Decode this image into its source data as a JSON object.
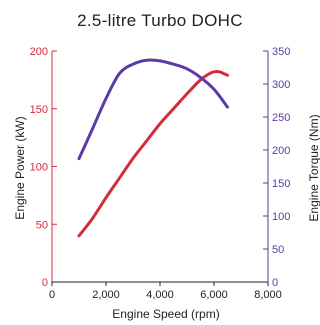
{
  "chart_data": {
    "type": "line",
    "title": "2.5-litre Turbo DOHC",
    "xlabel": "Engine Speed (rpm)",
    "ylabel_left": "Engine Power (kW)",
    "ylabel_right": "Engine Torque (Nm)",
    "xlim": [
      0,
      8000
    ],
    "ylim_left": [
      0,
      200
    ],
    "ylim_right": [
      0,
      350
    ],
    "x_ticks": [
      "0",
      "2,000",
      "4,000",
      "6,000",
      "8,000"
    ],
    "y_left_ticks": [
      "0",
      "50",
      "100",
      "150",
      "200"
    ],
    "y_right_ticks": [
      "0",
      "50",
      "100",
      "150",
      "200",
      "250",
      "300",
      "350"
    ],
    "grid": false,
    "colors": {
      "power": "#d42a3a",
      "torque": "#5b3aa6",
      "axis_left": "#d42a3a",
      "axis_right": "#5b3aa6",
      "axis_x": "#222222"
    },
    "series": [
      {
        "axis": "left",
        "color": "#d42a3a",
        "x": [
          1000,
          1500,
          2000,
          2500,
          3000,
          3500,
          4000,
          4500,
          5000,
          5500,
          5800,
          6000,
          6200,
          6500
        ],
        "y": [
          40,
          55,
          73,
          90,
          107,
          122,
          137,
          150,
          163,
          175,
          180,
          182,
          182,
          179
        ]
      },
      {
        "axis": "right",
        "color": "#5b3aa6",
        "x": [
          1000,
          1500,
          2000,
          2500,
          3000,
          3500,
          4000,
          4500,
          5000,
          5500,
          6000,
          6500
        ],
        "y": [
          187,
          232,
          278,
          316,
          330,
          336,
          335,
          330,
          323,
          310,
          292,
          265
        ]
      }
    ]
  }
}
